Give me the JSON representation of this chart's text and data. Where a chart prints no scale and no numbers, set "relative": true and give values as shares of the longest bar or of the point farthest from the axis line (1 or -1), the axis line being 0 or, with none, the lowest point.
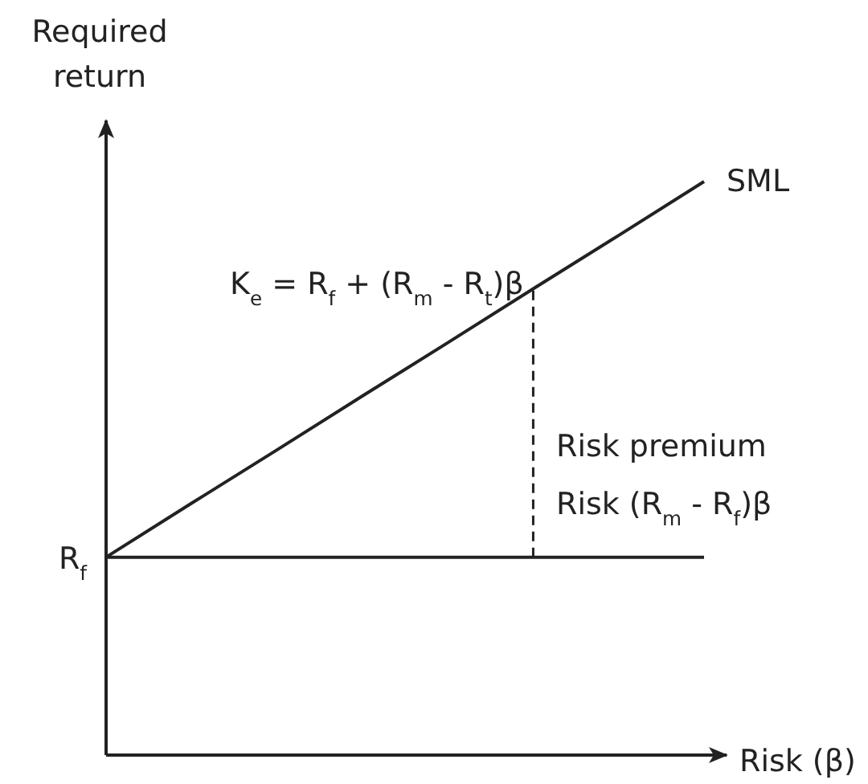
{
  "chart_data": {
    "type": "line",
    "relative": true,
    "xlabel": "Risk (β)",
    "ylabel": "Required return",
    "categories": [
      null,
      null,
      null,
      null,
      null,
      null,
      null,
      null
    ],
    "series": [
      {
        "name": "SML",
        "color": "#222222",
        "values": [
          0.345,
          0.439,
          0.532,
          0.626,
          0.719,
          0.813,
          0.906,
          1.0
        ]
      },
      {
        "color": "#222222",
        "values": [
          0.345,
          0.345,
          0.345,
          0.345,
          0.345,
          0.345,
          0.345,
          0.345
        ]
      }
    ],
    "annotations": [
      "K$_{e}$ = R$_{f}$ + (R$_{m}$ - R$_{t}$)β",
      "Risk premium",
      "Risk (R$_{m}$ - R$_{f}$)β",
      "R$_{f}$"
    ],
    "marker": "none",
    "line_style": "solid"
  }
}
